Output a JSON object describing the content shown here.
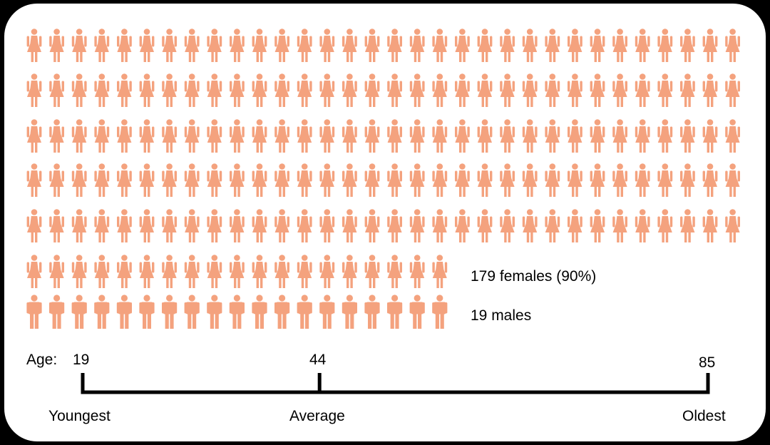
{
  "chart_data": {
    "type": "pictogram",
    "icon_color": "#F4A27E",
    "series": [
      {
        "name": "females",
        "count": 179,
        "percent": 90,
        "icon": "female-person-icon",
        "legend": "179 females (90%)"
      },
      {
        "name": "males",
        "count": 19,
        "icon": "male-person-icon",
        "legend": "19 males"
      }
    ],
    "age_scale": {
      "label": "Age:",
      "min": 19,
      "average": 44,
      "max": 85,
      "min_caption": "Youngest",
      "average_caption": "Average",
      "max_caption": "Oldest"
    }
  }
}
